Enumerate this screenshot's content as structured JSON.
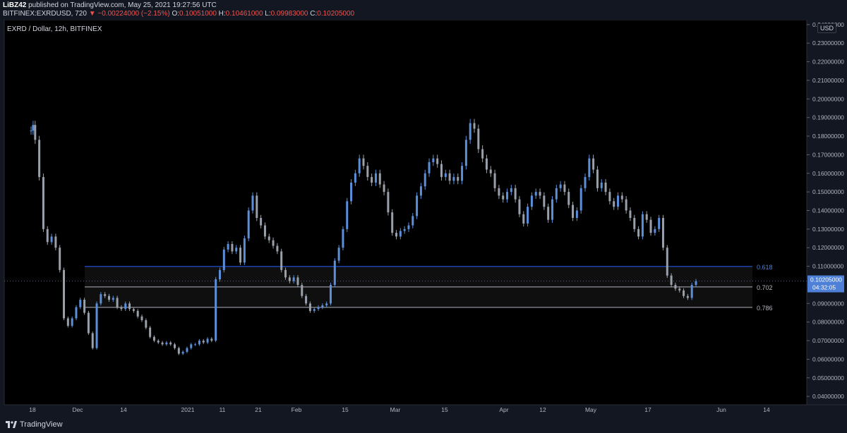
{
  "header": {
    "author": "LiBZ42",
    "published_text": "published on TradingView.com, May 25, 2021 19:27:56 UTC",
    "symbol": "BITFINEX:EXRDUSD, 720",
    "change_arrow": "▼",
    "change": "−0.00224000 (−2.15%)",
    "open_label": "O:",
    "open": "0.10051000",
    "high_label": "H:",
    "high": "0.10461000",
    "low_label": "L:",
    "low": "0.09983000",
    "close_label": "C:",
    "close": "0.10205000"
  },
  "chart_label": "EXRD / Dollar, 12h, BITFINEX",
  "currency_badge": "USD",
  "footer": {
    "brand": "TradingView"
  },
  "colors": {
    "background": "#000000",
    "candle": "#5b8fd9",
    "candle_down": "#9aa0aa",
    "fib_line": "#2962ff",
    "price_tag": "#4d80d6"
  },
  "chart_data": {
    "type": "candlestick",
    "xlabels": [
      "18",
      "Dec",
      "14",
      "2021",
      "11",
      "21",
      "Feb",
      "15",
      "Mar",
      "15",
      "Apr",
      "12",
      "May",
      "17",
      "Jun",
      "14"
    ],
    "yticks": [
      "0.24000000",
      "0.23000000",
      "0.22000000",
      "0.21000000",
      "0.20000000",
      "0.19000000",
      "0.18000000",
      "0.17000000",
      "0.16000000",
      "0.15000000",
      "0.14000000",
      "0.13000000",
      "0.12000000",
      "0.11000000",
      "0.09000000",
      "0.08000000",
      "0.07000000",
      "0.06000000",
      "0.05000000",
      "0.04000000"
    ],
    "ylim": [
      0.0355,
      0.2407
    ],
    "current_price": "0.10205000",
    "countdown": "04:32:05",
    "fib_levels": [
      {
        "label": "0.618",
        "value": 0.1099
      },
      {
        "label": "0.702",
        "value": 0.0989
      },
      {
        "label": "0.786",
        "value": 0.0879
      }
    ],
    "series": [
      {
        "x": 0,
        "y": 0.183
      },
      {
        "x": 0.5,
        "y": 0.186
      },
      {
        "x": 1,
        "y": 0.178
      },
      {
        "x": 2,
        "y": 0.158
      },
      {
        "x": 3,
        "y": 0.13
      },
      {
        "x": 4,
        "y": 0.123
      },
      {
        "x": 5,
        "y": 0.126
      },
      {
        "x": 6,
        "y": 0.12
      },
      {
        "x": 7,
        "y": 0.108
      },
      {
        "x": 8,
        "y": 0.082
      },
      {
        "x": 9,
        "y": 0.078
      },
      {
        "x": 10,
        "y": 0.082
      },
      {
        "x": 11,
        "y": 0.088
      },
      {
        "x": 12,
        "y": 0.092
      },
      {
        "x": 13,
        "y": 0.085
      },
      {
        "x": 14,
        "y": 0.074
      },
      {
        "x": 15,
        "y": 0.066
      },
      {
        "x": 16,
        "y": 0.09
      },
      {
        "x": 17,
        "y": 0.095
      },
      {
        "x": 18,
        "y": 0.094
      },
      {
        "x": 19,
        "y": 0.092
      },
      {
        "x": 20,
        "y": 0.093
      },
      {
        "x": 21,
        "y": 0.088
      },
      {
        "x": 22,
        "y": 0.087
      },
      {
        "x": 23,
        "y": 0.09
      },
      {
        "x": 24,
        "y": 0.087
      },
      {
        "x": 25,
        "y": 0.086
      },
      {
        "x": 26,
        "y": 0.083
      },
      {
        "x": 27,
        "y": 0.081
      },
      {
        "x": 28,
        "y": 0.077
      },
      {
        "x": 29,
        "y": 0.072
      },
      {
        "x": 30,
        "y": 0.07
      },
      {
        "x": 31,
        "y": 0.069
      },
      {
        "x": 32,
        "y": 0.068
      },
      {
        "x": 33,
        "y": 0.069
      },
      {
        "x": 34,
        "y": 0.068
      },
      {
        "x": 35,
        "y": 0.066
      },
      {
        "x": 36,
        "y": 0.063
      },
      {
        "x": 37,
        "y": 0.064
      },
      {
        "x": 38,
        "y": 0.066
      },
      {
        "x": 39,
        "y": 0.068
      },
      {
        "x": 40,
        "y": 0.068
      },
      {
        "x": 41,
        "y": 0.07
      },
      {
        "x": 42,
        "y": 0.069
      },
      {
        "x": 43,
        "y": 0.071
      },
      {
        "x": 44,
        "y": 0.07
      },
      {
        "x": 45,
        "y": 0.103
      },
      {
        "x": 46,
        "y": 0.108
      },
      {
        "x": 47,
        "y": 0.119
      },
      {
        "x": 48,
        "y": 0.122
      },
      {
        "x": 49,
        "y": 0.118
      },
      {
        "x": 50,
        "y": 0.12
      },
      {
        "x": 51,
        "y": 0.112
      },
      {
        "x": 52,
        "y": 0.125
      },
      {
        "x": 53,
        "y": 0.14
      },
      {
        "x": 54,
        "y": 0.148
      },
      {
        "x": 55,
        "y": 0.136
      },
      {
        "x": 56,
        "y": 0.132
      },
      {
        "x": 57,
        "y": 0.126
      },
      {
        "x": 58,
        "y": 0.124
      },
      {
        "x": 59,
        "y": 0.121
      },
      {
        "x": 60,
        "y": 0.118
      },
      {
        "x": 61,
        "y": 0.108
      },
      {
        "x": 62,
        "y": 0.104
      },
      {
        "x": 63,
        "y": 0.102
      },
      {
        "x": 64,
        "y": 0.104
      },
      {
        "x": 65,
        "y": 0.1
      },
      {
        "x": 66,
        "y": 0.094
      },
      {
        "x": 67,
        "y": 0.09
      },
      {
        "x": 68,
        "y": 0.086
      },
      {
        "x": 69,
        "y": 0.087
      },
      {
        "x": 70,
        "y": 0.088
      },
      {
        "x": 71,
        "y": 0.089
      },
      {
        "x": 72,
        "y": 0.09
      },
      {
        "x": 73,
        "y": 0.1
      },
      {
        "x": 74,
        "y": 0.113
      },
      {
        "x": 75,
        "y": 0.12
      },
      {
        "x": 76,
        "y": 0.13
      },
      {
        "x": 77,
        "y": 0.145
      },
      {
        "x": 78,
        "y": 0.155
      },
      {
        "x": 79,
        "y": 0.16
      },
      {
        "x": 80,
        "y": 0.168
      },
      {
        "x": 81,
        "y": 0.164
      },
      {
        "x": 82,
        "y": 0.158
      },
      {
        "x": 83,
        "y": 0.155
      },
      {
        "x": 84,
        "y": 0.16
      },
      {
        "x": 85,
        "y": 0.154
      },
      {
        "x": 86,
        "y": 0.15
      },
      {
        "x": 87,
        "y": 0.139
      },
      {
        "x": 88,
        "y": 0.128
      },
      {
        "x": 89,
        "y": 0.126
      },
      {
        "x": 90,
        "y": 0.129
      },
      {
        "x": 91,
        "y": 0.13
      },
      {
        "x": 92,
        "y": 0.132
      },
      {
        "x": 93,
        "y": 0.137
      },
      {
        "x": 94,
        "y": 0.148
      },
      {
        "x": 95,
        "y": 0.153
      },
      {
        "x": 96,
        "y": 0.16
      },
      {
        "x": 97,
        "y": 0.166
      },
      {
        "x": 98,
        "y": 0.168
      },
      {
        "x": 99,
        "y": 0.165
      },
      {
        "x": 100,
        "y": 0.158
      },
      {
        "x": 101,
        "y": 0.16
      },
      {
        "x": 102,
        "y": 0.156
      },
      {
        "x": 103,
        "y": 0.158
      },
      {
        "x": 104,
        "y": 0.156
      },
      {
        "x": 105,
        "y": 0.164
      },
      {
        "x": 106,
        "y": 0.178
      },
      {
        "x": 107,
        "y": 0.187
      },
      {
        "x": 108,
        "y": 0.184
      },
      {
        "x": 109,
        "y": 0.173
      },
      {
        "x": 110,
        "y": 0.168
      },
      {
        "x": 111,
        "y": 0.162
      },
      {
        "x": 112,
        "y": 0.16
      },
      {
        "x": 113,
        "y": 0.152
      },
      {
        "x": 114,
        "y": 0.148
      },
      {
        "x": 115,
        "y": 0.146
      },
      {
        "x": 116,
        "y": 0.15
      },
      {
        "x": 117,
        "y": 0.152
      },
      {
        "x": 118,
        "y": 0.146
      },
      {
        "x": 119,
        "y": 0.138
      },
      {
        "x": 120,
        "y": 0.133
      },
      {
        "x": 121,
        "y": 0.142
      },
      {
        "x": 122,
        "y": 0.148
      },
      {
        "x": 123,
        "y": 0.15
      },
      {
        "x": 124,
        "y": 0.148
      },
      {
        "x": 125,
        "y": 0.142
      },
      {
        "x": 126,
        "y": 0.135
      },
      {
        "x": 127,
        "y": 0.146
      },
      {
        "x": 128,
        "y": 0.152
      },
      {
        "x": 129,
        "y": 0.154
      },
      {
        "x": 130,
        "y": 0.15
      },
      {
        "x": 131,
        "y": 0.143
      },
      {
        "x": 132,
        "y": 0.136
      },
      {
        "x": 133,
        "y": 0.14
      },
      {
        "x": 134,
        "y": 0.152
      },
      {
        "x": 135,
        "y": 0.158
      },
      {
        "x": 136,
        "y": 0.168
      },
      {
        "x": 137,
        "y": 0.162
      },
      {
        "x": 138,
        "y": 0.152
      },
      {
        "x": 139,
        "y": 0.155
      },
      {
        "x": 140,
        "y": 0.15
      },
      {
        "x": 141,
        "y": 0.145
      },
      {
        "x": 142,
        "y": 0.142
      },
      {
        "x": 143,
        "y": 0.148
      },
      {
        "x": 144,
        "y": 0.146
      },
      {
        "x": 145,
        "y": 0.14
      },
      {
        "x": 146,
        "y": 0.136
      },
      {
        "x": 147,
        "y": 0.13
      },
      {
        "x": 148,
        "y": 0.126
      },
      {
        "x": 149,
        "y": 0.138
      },
      {
        "x": 150,
        "y": 0.135
      },
      {
        "x": 151,
        "y": 0.128
      },
      {
        "x": 152,
        "y": 0.13
      },
      {
        "x": 153,
        "y": 0.136
      },
      {
        "x": 154,
        "y": 0.12
      },
      {
        "x": 155,
        "y": 0.105
      },
      {
        "x": 156,
        "y": 0.1
      },
      {
        "x": 157,
        "y": 0.098
      },
      {
        "x": 158,
        "y": 0.097
      },
      {
        "x": 159,
        "y": 0.094
      },
      {
        "x": 160,
        "y": 0.093
      },
      {
        "x": 161,
        "y": 0.1
      },
      {
        "x": 162,
        "y": 0.102
      }
    ]
  }
}
